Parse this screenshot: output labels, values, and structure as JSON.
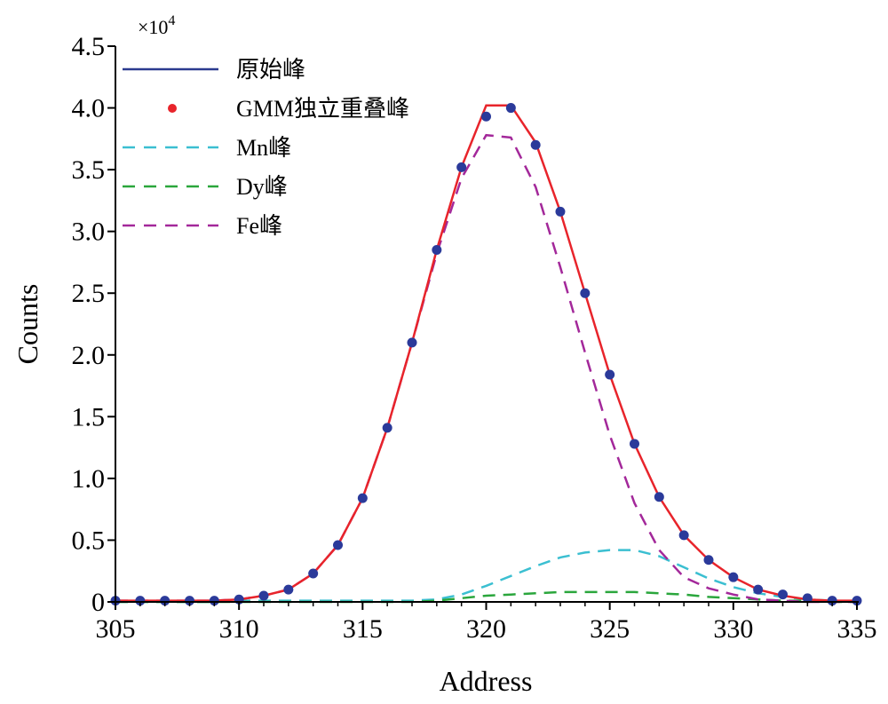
{
  "chart_data": {
    "type": "line",
    "xlabel": "Address",
    "ylabel": "Counts",
    "y_multiplier": "×10",
    "y_multiplier_exp": "4",
    "xlim": [
      305,
      335
    ],
    "ylim": [
      0,
      4.5
    ],
    "x_ticks": [
      "305",
      "310",
      "315",
      "320",
      "325",
      "330",
      "335"
    ],
    "y_ticks": [
      "0",
      "0.5",
      "1.0",
      "1.5",
      "2.0",
      "2.5",
      "3.0",
      "3.5",
      "4.0",
      "4.5"
    ],
    "legend_position": "top-left",
    "x": [
      305,
      306,
      307,
      308,
      309,
      310,
      311,
      312,
      313,
      314,
      315,
      316,
      317,
      318,
      319,
      320,
      321,
      322,
      323,
      324,
      325,
      326,
      327,
      328,
      329,
      330,
      331,
      332,
      333,
      334,
      335
    ],
    "series": [
      {
        "name": "原始峰",
        "style": "solid",
        "color": "#2b3a8f",
        "values": [
          0.01,
          0.01,
          0.01,
          0.01,
          0.01,
          0.02,
          0.05,
          0.1,
          0.23,
          0.46,
          0.84,
          1.41,
          2.1,
          2.85,
          3.52,
          4.02,
          4.02,
          3.72,
          3.16,
          2.5,
          1.84,
          1.28,
          0.85,
          0.54,
          0.34,
          0.2,
          0.1,
          0.05,
          0.02,
          0.01,
          0.01
        ]
      },
      {
        "name": "GMM独立重叠峰",
        "style": "dots",
        "color": "#e8242b",
        "values": [
          0.01,
          0.01,
          0.01,
          0.01,
          0.01,
          0.02,
          0.05,
          0.1,
          0.23,
          0.46,
          0.84,
          1.41,
          2.1,
          2.85,
          3.52,
          3.93,
          4.0,
          3.7,
          3.16,
          2.5,
          1.84,
          1.28,
          0.85,
          0.54,
          0.34,
          0.2,
          0.1,
          0.06,
          0.03,
          0.01,
          0.01
        ]
      },
      {
        "name": "Mn峰",
        "style": "dashed",
        "color": "#3bbfd1",
        "values": [
          0,
          0,
          0,
          0,
          0,
          0.01,
          0.01,
          0.01,
          0.01,
          0.01,
          0.01,
          0.01,
          0.01,
          0.02,
          0.06,
          0.13,
          0.21,
          0.29,
          0.36,
          0.4,
          0.42,
          0.42,
          0.37,
          0.28,
          0.19,
          0.12,
          0.07,
          0.04,
          0.02,
          0.01,
          0
        ]
      },
      {
        "name": "Dy峰",
        "style": "dashed",
        "color": "#2aa63c",
        "values": [
          0,
          0,
          0,
          0,
          0,
          0,
          0,
          0,
          0,
          0,
          0,
          0,
          0,
          0.01,
          0.03,
          0.05,
          0.06,
          0.07,
          0.08,
          0.08,
          0.08,
          0.08,
          0.07,
          0.06,
          0.04,
          0.03,
          0.02,
          0.01,
          0.01,
          0,
          0
        ]
      },
      {
        "name": "Fe峰",
        "style": "dashed",
        "color": "#a3289a",
        "values": [
          0.01,
          0.01,
          0.01,
          0.01,
          0.01,
          0.02,
          0.05,
          0.1,
          0.23,
          0.46,
          0.84,
          1.41,
          2.1,
          2.82,
          3.43,
          3.78,
          3.76,
          3.36,
          2.71,
          2.02,
          1.35,
          0.8,
          0.42,
          0.2,
          0.11,
          0.06,
          0.02,
          0.01,
          0,
          0,
          0
        ]
      }
    ],
    "colors": {
      "axis": "#000000",
      "envelope_line": "#e8242b",
      "marker_fill": "#2b3a9a"
    }
  }
}
